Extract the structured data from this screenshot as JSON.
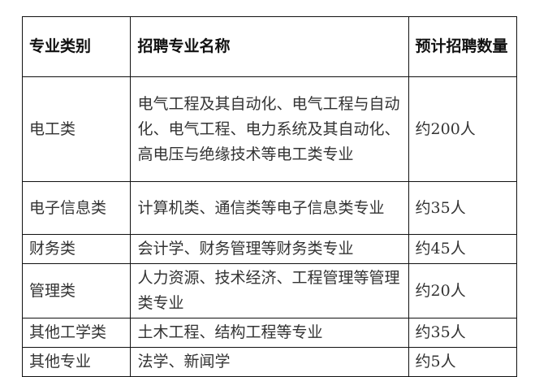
{
  "table": {
    "headers": [
      "专业类别",
      "招聘专业名称",
      "预计招聘数量"
    ],
    "rows": [
      {
        "category": "电工类",
        "majors": "电气工程及其自动化、电气工程与自动化、电气工程、电力系统及其自动化、高电压与绝缘技术等电工类专业",
        "count": "约200人"
      },
      {
        "category": "电子信息类",
        "majors": "计算机类、通信类等电子信息类专业",
        "count": "约35人"
      },
      {
        "category": "财务类",
        "majors": "会计学、财务管理等财务类专业",
        "count": "约45人"
      },
      {
        "category": "管理类",
        "majors": "人力资源、技术经济、工程管理等管理类专业",
        "count": "约20人"
      },
      {
        "category": "其他工学类",
        "majors": "土木工程、结构工程等专业",
        "count": "约35人"
      },
      {
        "category": "其他专业",
        "majors": "法学、新闻学",
        "count": "约5人"
      }
    ]
  }
}
